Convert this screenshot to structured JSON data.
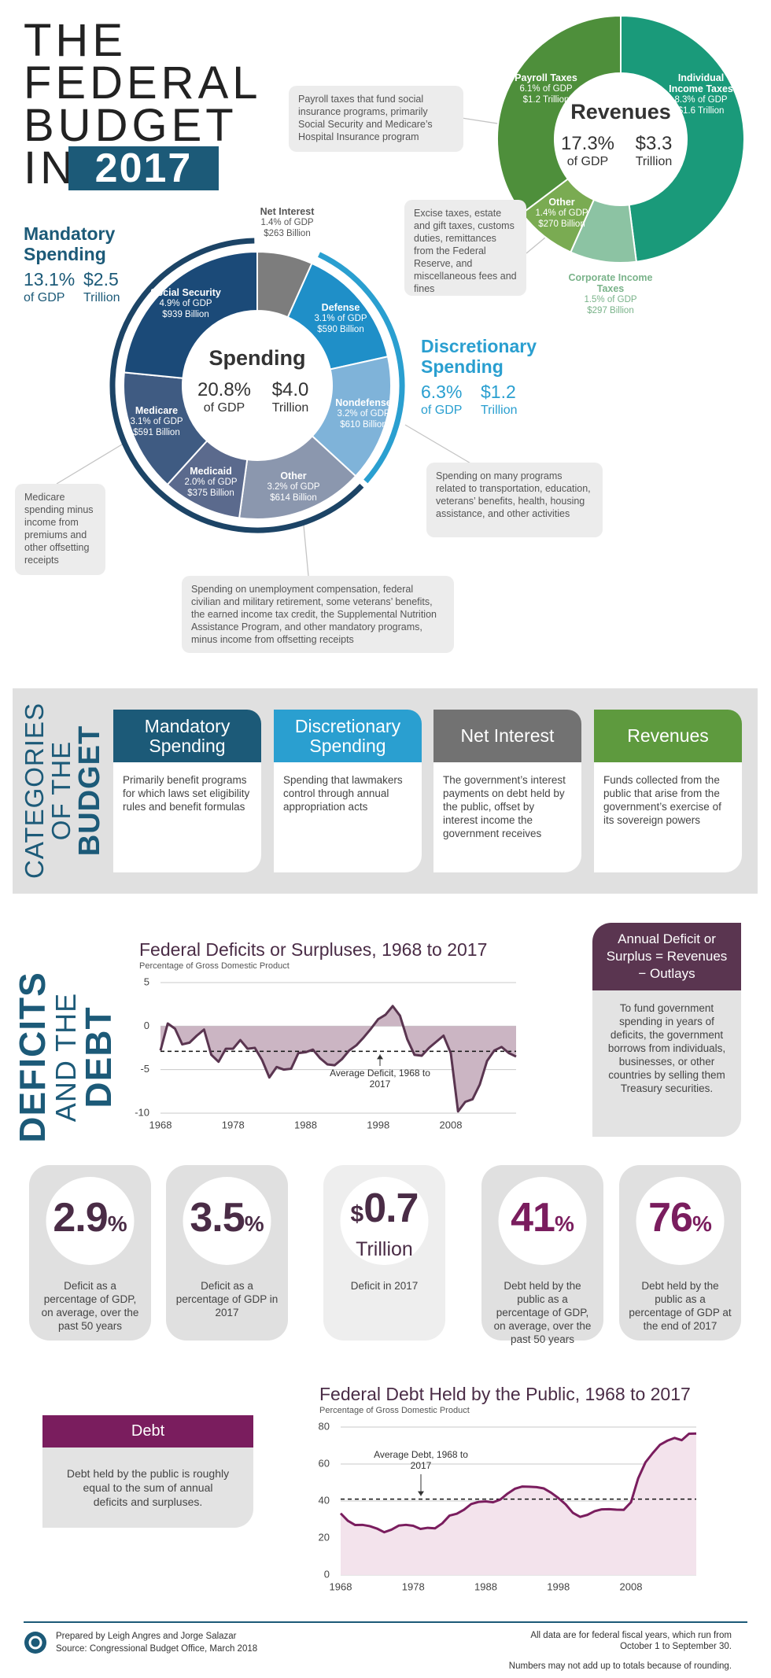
{
  "header": {
    "title_lines": [
      "THE",
      "FEDERAL",
      "BUDGET",
      "IN"
    ],
    "year": "2017"
  },
  "mandatory": {
    "title": "Mandatory Spending",
    "gdp": "13.1%",
    "gdp_label": "of GDP",
    "amount": "$2.5",
    "amount_label": "Trillion"
  },
  "discretionary": {
    "title": "Discretionary Spending",
    "gdp": "6.3%",
    "gdp_label": "of GDP",
    "amount": "$1.2",
    "amount_label": "Trillion"
  },
  "chart_data": [
    {
      "type": "pie",
      "title": "Revenues",
      "center": {
        "percent": "17.3%",
        "percent_label": "of GDP",
        "amount": "$3.3",
        "amount_label": "Trillion"
      },
      "categories": [
        "Individual Income Taxes",
        "Corporate Income Taxes",
        "Other",
        "Payroll Taxes"
      ],
      "values": [
        8.3,
        1.5,
        1.4,
        6.1
      ],
      "value_labels": [
        "8.3% of GDP",
        "1.5% of GDP",
        "1.4% of GDP",
        "6.1% of GDP"
      ],
      "amounts": [
        "$1.6 Trillion",
        "$297 Billion",
        "$270 Billion",
        "$1.2 Trillion"
      ],
      "colors": [
        "#1a9a7a",
        "#8cc3a3",
        "#7aab52",
        "#4e8f3b"
      ]
    },
    {
      "type": "pie",
      "title": "Spending",
      "center": {
        "percent": "20.8%",
        "percent_label": "of GDP",
        "amount": "$4.0",
        "amount_label": "Trillion"
      },
      "categories": [
        "Net Interest",
        "Defense",
        "Nondefense",
        "Other",
        "Medicaid",
        "Medicare",
        "Social Security"
      ],
      "values": [
        1.4,
        3.1,
        3.2,
        3.2,
        2.0,
        3.1,
        4.9
      ],
      "value_labels": [
        "1.4% of GDP",
        "3.1% of GDP",
        "3.2% of GDP",
        "3.2% of GDP",
        "2.0% of GDP",
        "3.1% of GDP",
        "4.9% of GDP"
      ],
      "amounts": [
        "$263 Billion",
        "$590 Billion",
        "$610 Billion",
        "$614 Billion",
        "$375 Billion",
        "$591 Billion",
        "$939 Billion"
      ],
      "colors": [
        "#7d7d7d",
        "#1f8fc8",
        "#7fb3d9",
        "#8b97ae",
        "#5b6a8d",
        "#3f5b82",
        "#1b4a78"
      ]
    },
    {
      "type": "line",
      "title": "Federal Deficits or Surpluses, 1968 to 2017",
      "subtitle": "Percentage of Gross Domestic Product",
      "x": [
        1968,
        1969,
        1970,
        1971,
        1972,
        1973,
        1974,
        1975,
        1976,
        1977,
        1978,
        1979,
        1980,
        1981,
        1982,
        1983,
        1984,
        1985,
        1986,
        1987,
        1988,
        1989,
        1990,
        1991,
        1992,
        1993,
        1994,
        1995,
        1996,
        1997,
        1998,
        1999,
        2000,
        2001,
        2002,
        2003,
        2004,
        2005,
        2006,
        2007,
        2008,
        2009,
        2010,
        2011,
        2012,
        2013,
        2014,
        2015,
        2016,
        2017
      ],
      "values": [
        -2.8,
        0.3,
        -0.3,
        -2.1,
        -1.9,
        -1.1,
        -0.4,
        -3.3,
        -4.1,
        -2.6,
        -2.6,
        -1.6,
        -2.6,
        -2.5,
        -3.9,
        -5.9,
        -4.7,
        -5.0,
        -4.9,
        -3.1,
        -3.0,
        -2.7,
        -3.7,
        -4.4,
        -4.5,
        -3.8,
        -2.8,
        -2.2,
        -1.3,
        -0.3,
        0.8,
        1.3,
        2.3,
        1.2,
        -1.5,
        -3.3,
        -3.4,
        -2.5,
        -1.8,
        -1.1,
        -3.1,
        -9.8,
        -8.7,
        -8.4,
        -6.7,
        -4.0,
        -2.8,
        -2.4,
        -3.1,
        -3.5
      ],
      "color": "#5a3550",
      "fill": "#cbb5c3",
      "average": -2.9,
      "annotation": "Average Deficit, 1968 to 2017",
      "xlim": [
        1968,
        2017
      ],
      "xticks": [
        1968,
        1978,
        1988,
        1998,
        2008
      ],
      "ylim": [
        -10,
        5
      ],
      "yticks": [
        -10,
        -5,
        0,
        5
      ],
      "grid": true
    },
    {
      "type": "line",
      "title": "Federal Debt Held by the Public, 1968 to 2017",
      "subtitle": "Percentage of Gross Domestic Product",
      "x": [
        1968,
        1969,
        1970,
        1971,
        1972,
        1973,
        1974,
        1975,
        1976,
        1977,
        1978,
        1979,
        1980,
        1981,
        1982,
        1983,
        1984,
        1985,
        1986,
        1987,
        1988,
        1989,
        1990,
        1991,
        1992,
        1993,
        1994,
        1995,
        1996,
        1997,
        1998,
        1999,
        2000,
        2001,
        2002,
        2003,
        2004,
        2005,
        2006,
        2007,
        2008,
        2009,
        2010,
        2011,
        2012,
        2013,
        2014,
        2015,
        2016,
        2017
      ],
      "values": [
        33.3,
        29.3,
        27.0,
        27.1,
        26.4,
        25.1,
        23.1,
        24.5,
        26.7,
        27.1,
        26.6,
        24.9,
        25.5,
        25.2,
        27.9,
        32.1,
        33.1,
        35.3,
        38.4,
        39.5,
        39.8,
        39.3,
        40.8,
        44.0,
        46.6,
        47.8,
        47.7,
        47.5,
        46.8,
        44.5,
        41.6,
        38.2,
        33.6,
        31.4,
        32.5,
        34.5,
        35.5,
        35.6,
        35.3,
        35.2,
        39.3,
        52.3,
        60.9,
        65.9,
        70.4,
        72.6,
        74.1,
        72.9,
        76.4,
        76.5
      ],
      "color": "#7a1d5e",
      "fill": "#f3e3ec",
      "average": 41,
      "annotation": "Average Debt, 1968 to 2017",
      "xlim": [
        1968,
        2017
      ],
      "xticks": [
        1968,
        1978,
        1988,
        1998,
        2008
      ],
      "ylim": [
        0,
        80
      ],
      "yticks": [
        0,
        20,
        40,
        60,
        80
      ],
      "grid": true
    }
  ],
  "notes": {
    "payroll": "Payroll taxes that fund social insurance programs, primarily Social Security and Medicare’s Hospital Insurance program",
    "excise": "Excise taxes, estate and gift taxes, customs duties, remittances from the Federal Reserve, and miscellaneous fees and fines",
    "nondefense": "Spending on many programs related to transportation, education, veterans’ benefits, health, housing assistance, and other activities",
    "medicare": "Medicare spending minus income from premiums and other offsetting receipts",
    "other": "Spending on unemployment compensation, federal civilian and military retirement, some veterans’ benefits, the earned income tax credit, the Supplemental Nutrition Assistance Program, and other mandatory programs, minus income from offsetting receipts"
  },
  "categories": {
    "title_lines": [
      "CATEGORIES",
      "OF THE",
      "BUDGET"
    ],
    "cards": [
      {
        "title": "Mandatory Spending",
        "text": "Primarily benefit programs for which laws set eligibility rules and benefit formulas",
        "color": "#1c5a78"
      },
      {
        "title": "Discretionary Spending",
        "text": "Spending that lawmakers control through annual appropriation acts",
        "color": "#2a9fd0"
      },
      {
        "title": "Net Interest",
        "text": "The government’s interest payments on debt held by the public, offset by interest income the government receives",
        "color": "#727272"
      },
      {
        "title": "Revenues",
        "text": "Funds collected from the public that arise from the government’s exercise of its sovereign powers",
        "color": "#5e9a3e"
      }
    ]
  },
  "deficits_title_lines": [
    "DEFICITS",
    "AND THE",
    "DEBT"
  ],
  "formula_box": {
    "title": "Annual Deficit or Surplus = Revenues − Outlays",
    "text": "To fund government spending in years of deficits, the government borrows from individuals, businesses, or other countries by selling them Treasury securities."
  },
  "stats": [
    {
      "number": 2.9,
      "suffix": "%",
      "text": "Deficit as a percentage of GDP, on average, over the past 50 years",
      "color": "#4a2c46"
    },
    {
      "number": 3.5,
      "suffix": "%",
      "text": "Deficit as a percentage of GDP in 2017",
      "color": "#4a2c46"
    },
    {
      "prefix": "$",
      "number": 0.7,
      "suffix": "Trillion",
      "text": "Deficit in 2017",
      "color": "#4a2c46"
    },
    {
      "number": 41,
      "suffix": "%",
      "text": "Debt held by the public as a percentage of GDP, on average, over the past 50 years",
      "color": "#7a1d5e"
    },
    {
      "number": 76,
      "suffix": "%",
      "text": "Debt held by the public as a percentage of GDP at the end of 2017",
      "color": "#7a1d5e"
    }
  ],
  "debt_box": {
    "title": "Debt",
    "text": "Debt held by the public is roughly equal to the sum of annual deficits and surpluses."
  },
  "footer": {
    "prepared": "Prepared by Leigh Angres and Jorge Salazar",
    "source": "Source: Congressional Budget Office, March 2018",
    "fiscal": "All data are for federal fiscal years, which run from October 1 to September 30.",
    "rounding": "Numbers may not add up to totals because of rounding."
  }
}
